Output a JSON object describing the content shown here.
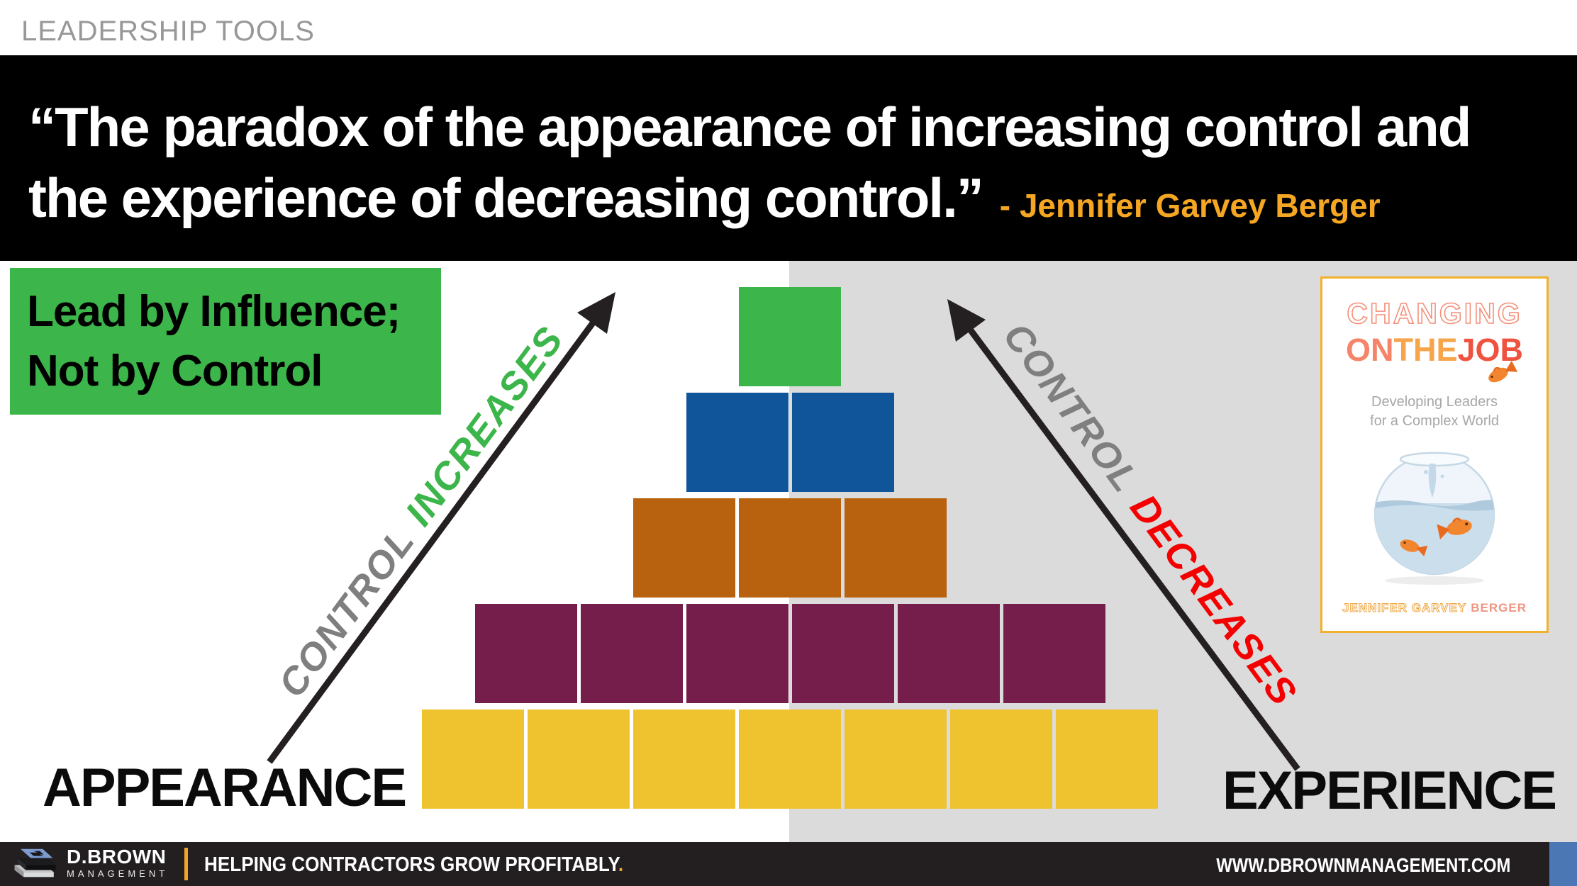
{
  "header": {
    "label": "LEADERSHIP TOOLS"
  },
  "quote": {
    "line1": "“The paradox of the appearance of increasing control and",
    "line2": "the experience of decreasing control.”",
    "attribution": "- Jennifer Garvey Berger"
  },
  "callout": {
    "line1": "Lead by Influence;",
    "line2": "Not by Control"
  },
  "left_arrow": {
    "word1": "CONTROL",
    "word2": "INCREASES"
  },
  "right_arrow": {
    "word1": "CONTROL",
    "word2": "DECREASES"
  },
  "axis": {
    "left": "APPEARANCE",
    "right": "EXPERIENCE"
  },
  "pyramid": {
    "rows": [
      {
        "name": "green",
        "count": 1,
        "color": "#3CB54A"
      },
      {
        "name": "blue",
        "count": 2,
        "color": "#10559A"
      },
      {
        "name": "orange",
        "count": 3,
        "color": "#B8610E"
      },
      {
        "name": "purple",
        "count": 6,
        "color": "#751D4B"
      },
      {
        "name": "yellow",
        "count": 7,
        "color": "#EFC32F"
      }
    ]
  },
  "book": {
    "title_line1": "CHANGING",
    "title_on": "ON",
    "title_the": "THE",
    "title_job": "JOB",
    "subtitle_line1": "Developing Leaders",
    "subtitle_line2": "for a Complex World",
    "author_first": "JENNIFER GARVEY",
    "author_last": "BERGER"
  },
  "footer": {
    "brand": "D.BROWN",
    "brand_sub": "MANAGEMENT",
    "tagline": "HELPING CONTRACTORS GROW PROFITABLY",
    "tagline_period": ".",
    "website": "WWW.DBROWNMANAGEMENT.COM"
  },
  "colors": {
    "kicker_gray": "#98989A",
    "banner_black": "#000000",
    "attribution_gold": "#F5A623",
    "callout_green": "#3CB54A",
    "gray_panel": "#DBDBDB",
    "arrow_dark": "#241F20",
    "control_gray": "#7F7F7F",
    "increases_green": "#3CB54A",
    "decreases_red": "#F40000",
    "footer_bg": "#231F20",
    "footer_accent": "#F0A42A",
    "footer_blue": "#4C77B5",
    "book_border": "#F2B02C"
  }
}
